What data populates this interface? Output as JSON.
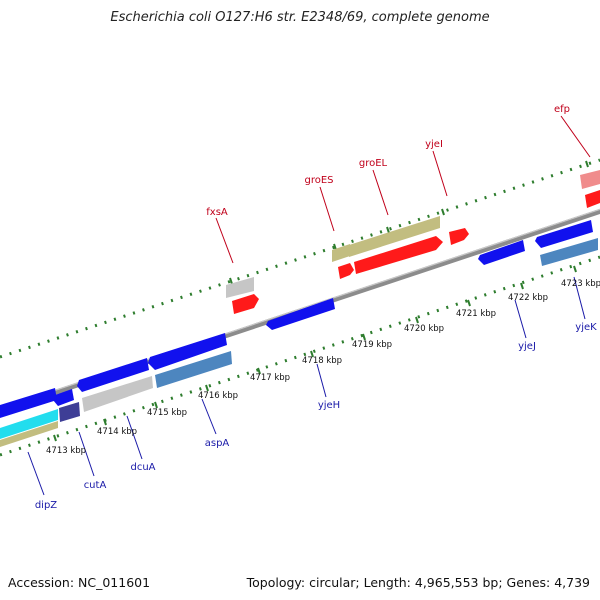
{
  "title": "Escherichia coli O127:H6 str. E2348/69, complete genome",
  "footer": {
    "accession": "Accession: NC_011601",
    "summary": "Topology: circular; Length: 4,965,553 bp; Genes: 4,739"
  },
  "colors": {
    "background": "#ffffff",
    "backbone": "#8c8c8c",
    "tick": "#2e7d2e",
    "forward_label": "#c0001a",
    "reverse_label": "#1a1aa8",
    "red": "#ff1a1a",
    "blue": "#1111ee",
    "olive": "#c2bd80",
    "gray": "#c6c6c6",
    "steel": "#4d86bf",
    "cyan": "#22ddee",
    "navy": "#3e3e96",
    "pink": "#f08c8c"
  },
  "kbp_labels": [
    "4713 kbp",
    "4714 kbp",
    "4715 kbp",
    "4716 kbp",
    "4717 kbp",
    "4718 kbp",
    "4719 kbp",
    "4720 kbp",
    "4721 kbp",
    "4722 kbp",
    "4723 kbp"
  ],
  "gene_labels": {
    "forward": [
      "fxsA",
      "groES",
      "groEL",
      "yjeI",
      "efp"
    ],
    "reverse": [
      "dipZ",
      "cutA",
      "dcuA",
      "aspA",
      "yjeH",
      "yjeJ",
      "yjeK"
    ]
  }
}
